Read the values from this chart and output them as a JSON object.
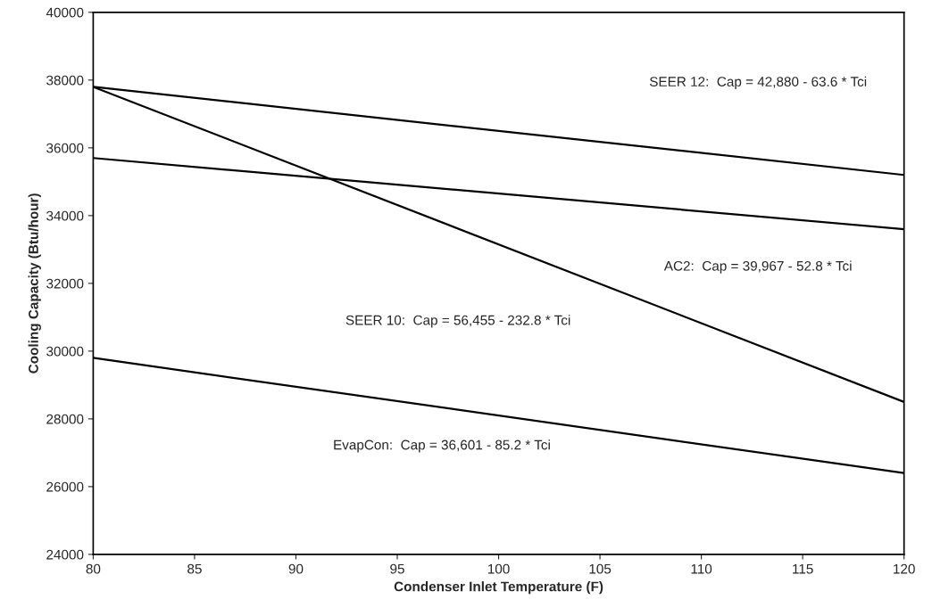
{
  "chart_data": {
    "type": "line",
    "xlabel": "Condenser Inlet Temperature (F)",
    "ylabel": "Cooling Capacity (Btu/hour)",
    "x": [
      80,
      120
    ],
    "series": [
      {
        "color": "#000000",
        "values": [
          37800,
          35200
        ]
      },
      {
        "color": "#000000",
        "values": [
          35700,
          33600
        ]
      },
      {
        "color": "#000000",
        "values": [
          37800,
          28500
        ]
      },
      {
        "color": "#000000",
        "values": [
          29800,
          26400
        ]
      }
    ],
    "annotations": [
      "SEER 12:  Cap = 42,880 - 63.6 * Tci",
      "AC2:  Cap = 39,967 - 52.8 * Tci",
      "SEER 10:  Cap = 56,455 - 232.8 * Tci",
      "EvapCon:  Cap = 36,601 - 85.2 * Tci"
    ],
    "xlim": [
      80,
      120
    ],
    "xticks": [
      80,
      85,
      90,
      95,
      100,
      105,
      110,
      115,
      120
    ],
    "ylim": [
      24000,
      40000
    ],
    "yticks": [
      24000,
      26000,
      28000,
      30000,
      32000,
      34000,
      36000,
      38000,
      40000
    ],
    "grid": false,
    "marker": "none",
    "line_style": "solid"
  }
}
